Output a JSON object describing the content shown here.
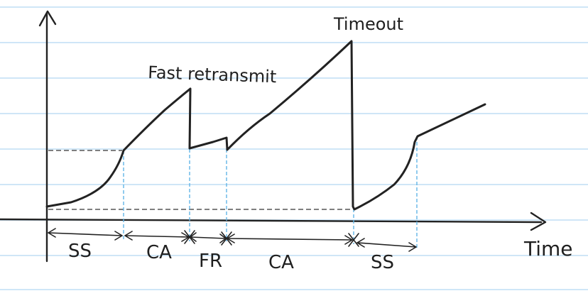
{
  "labels": {
    "fast_retransmit": "Fast retransmit",
    "timeout": "Timeout",
    "x_axis": "Time",
    "phases": [
      "SS",
      "CA",
      "FR",
      "CA",
      "SS"
    ]
  },
  "colors": {
    "ink": "#222222",
    "notebook_rule": "#cfe6f7",
    "phase_marker": "#62b5e6"
  },
  "icons": {
    "x_axis_arrow": "arrow-right-icon",
    "y_axis_arrow": "arrow-up-icon"
  }
}
